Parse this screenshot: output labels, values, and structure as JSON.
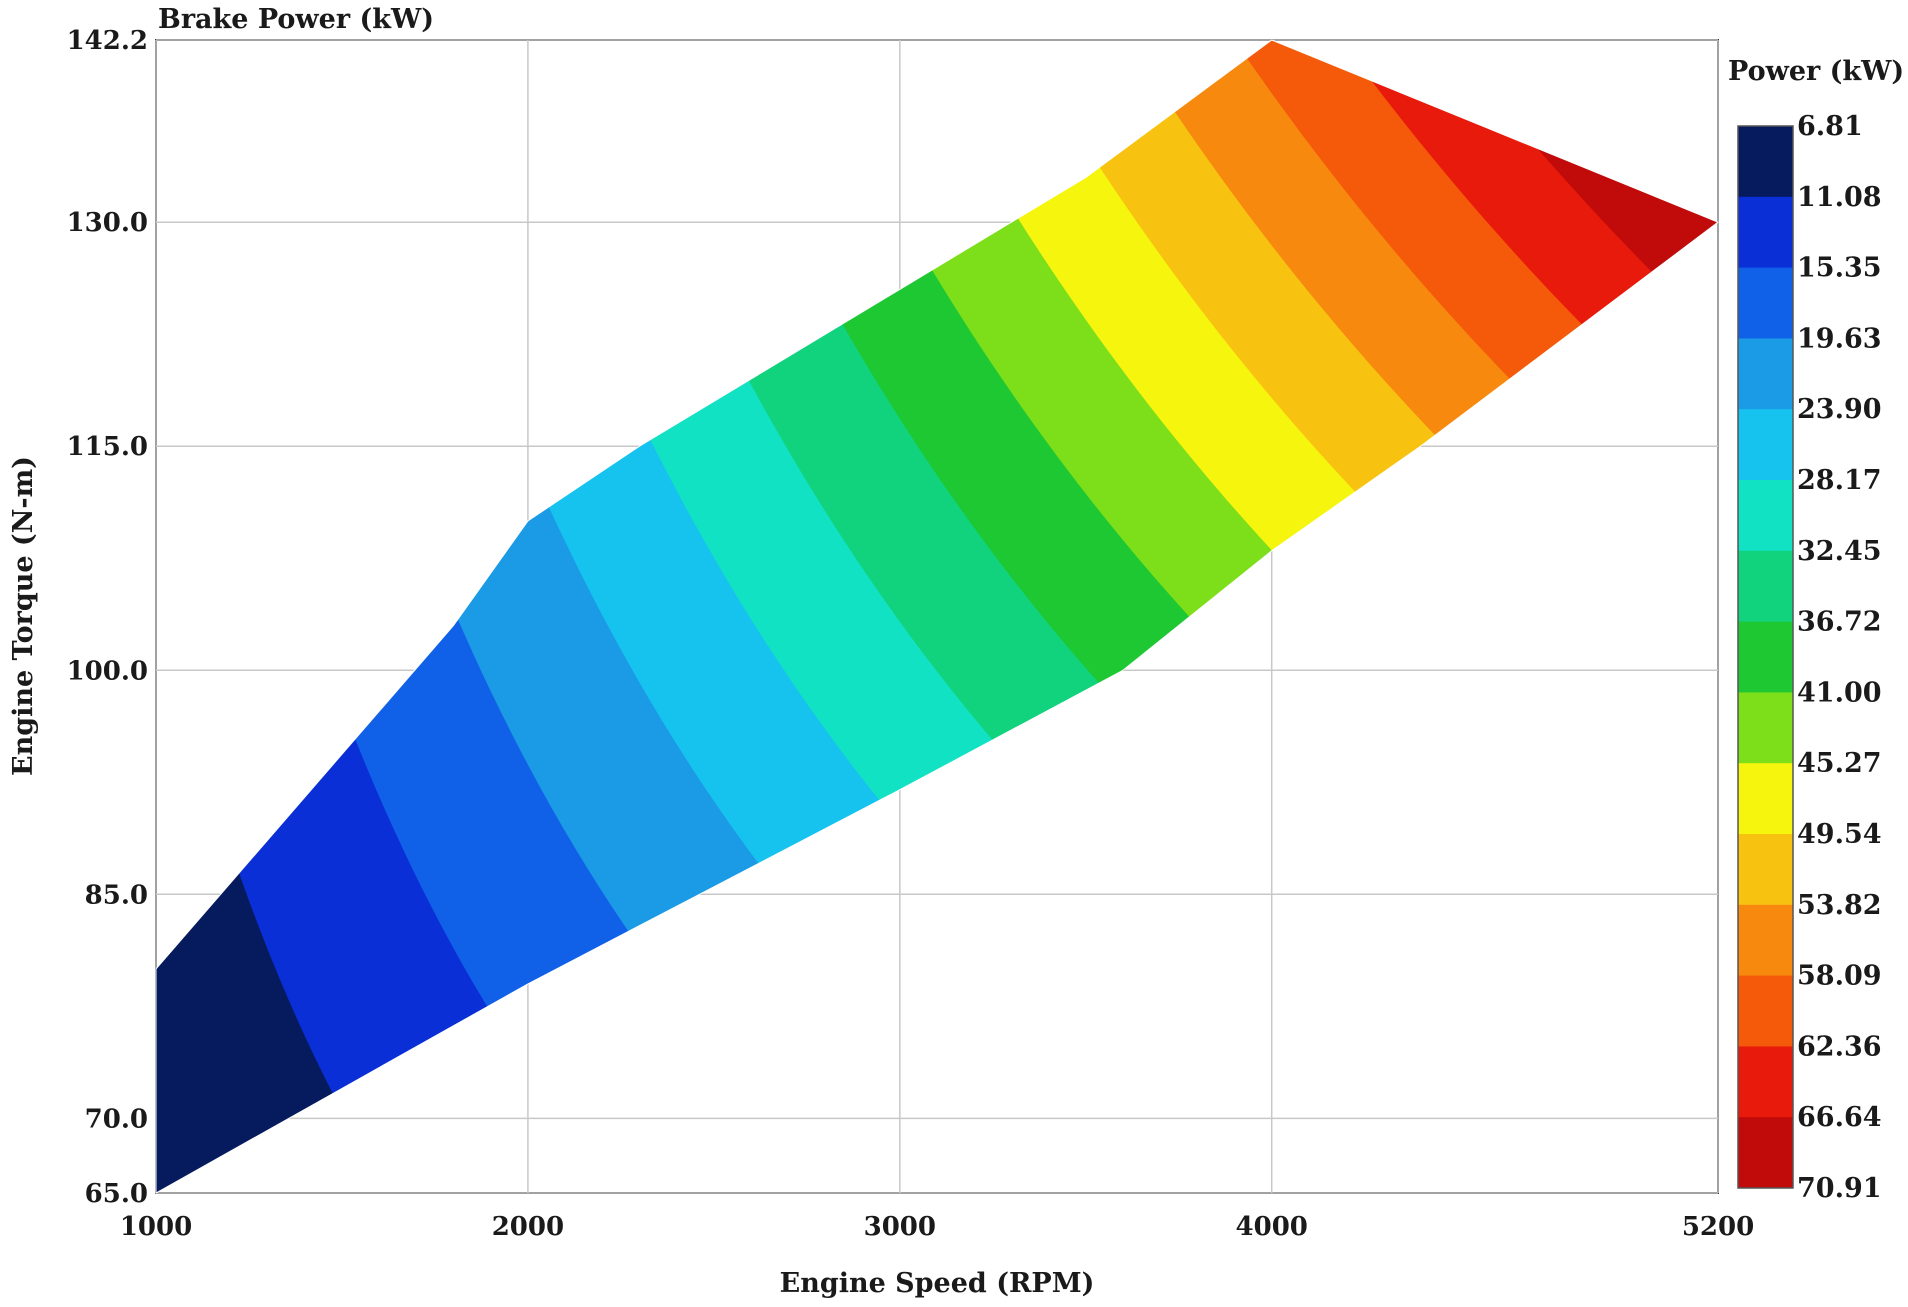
{
  "chart_data": {
    "type": "contour",
    "title": "Brake Power (kW)",
    "xlabel": "Engine Speed (RPM)",
    "ylabel": "Engine Torque (N-m)",
    "xlim": [
      1000,
      5200
    ],
    "ylim": [
      65.0,
      142.2
    ],
    "x_ticks": [
      "1000",
      "2000",
      "3000",
      "4000",
      "5200"
    ],
    "y_ticks": [
      "65.0",
      "70.0",
      "85.0",
      "100.0",
      "115.0",
      "130.0",
      "142.2"
    ],
    "grid": true,
    "colorbar": {
      "title": "Power (kW)",
      "levels": [
        "6.81",
        "11.08",
        "15.35",
        "19.63",
        "23.90",
        "28.17",
        "32.45",
        "36.72",
        "41.00",
        "45.27",
        "49.54",
        "53.82",
        "58.09",
        "62.36",
        "66.64",
        "70.91"
      ],
      "colors": [
        "#061a5e",
        "#0a2fd6",
        "#1160e8",
        "#1b9ae6",
        "#16c3ef",
        "#12e2c4",
        "#11d37e",
        "#1dc833",
        "#7cdf19",
        "#f5f50e",
        "#f8c310",
        "#f7890e",
        "#f45a0a",
        "#e81a0b",
        "#c10a0a"
      ]
    },
    "domain_upper": [
      [
        1000,
        80.0
      ],
      [
        1800,
        103.0
      ],
      [
        2000,
        110.0
      ],
      [
        2300,
        115.0
      ],
      [
        3000,
        125.5
      ],
      [
        3500,
        133.0
      ],
      [
        4000,
        142.2
      ],
      [
        5200,
        130.0
      ]
    ],
    "domain_lower": [
      [
        1000,
        65.0
      ],
      [
        2000,
        79.0
      ],
      [
        3000,
        92.0
      ],
      [
        3600,
        100.0
      ],
      [
        4000,
        108.0
      ],
      [
        4400,
        115.0
      ],
      [
        5200,
        130.0
      ]
    ]
  }
}
